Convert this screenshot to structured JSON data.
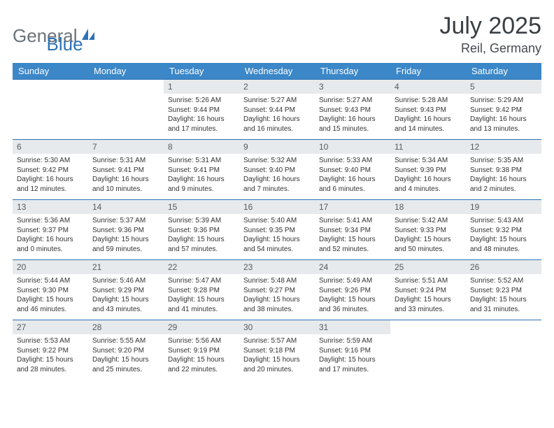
{
  "logo": {
    "part1": "General",
    "part2": "Blue"
  },
  "title": "July 2025",
  "location": "Reil, Germany",
  "colors": {
    "header_bg": "#3b87c8",
    "header_text": "#ffffff",
    "daynum_bg": "#e7eaec",
    "daynum_text": "#555a5e",
    "rule": "#2d72b5",
    "logo_gray": "#6b7278",
    "logo_blue": "#2d72b5",
    "page_bg": "#ffffff"
  },
  "typography": {
    "title_fontsize": 34,
    "location_fontsize": 18,
    "dayheader_fontsize": 13,
    "daynum_fontsize": 12,
    "body_fontsize": 10
  },
  "calendar": {
    "type": "table",
    "day_headers": [
      "Sunday",
      "Monday",
      "Tuesday",
      "Wednesday",
      "Thursday",
      "Friday",
      "Saturday"
    ],
    "columns": 7,
    "first_day_column": 2,
    "days": [
      {
        "n": 1,
        "sunrise": "5:26 AM",
        "sunset": "9:44 PM",
        "dl_h": 16,
        "dl_m": 17
      },
      {
        "n": 2,
        "sunrise": "5:27 AM",
        "sunset": "9:44 PM",
        "dl_h": 16,
        "dl_m": 16
      },
      {
        "n": 3,
        "sunrise": "5:27 AM",
        "sunset": "9:43 PM",
        "dl_h": 16,
        "dl_m": 15
      },
      {
        "n": 4,
        "sunrise": "5:28 AM",
        "sunset": "9:43 PM",
        "dl_h": 16,
        "dl_m": 14
      },
      {
        "n": 5,
        "sunrise": "5:29 AM",
        "sunset": "9:42 PM",
        "dl_h": 16,
        "dl_m": 13
      },
      {
        "n": 6,
        "sunrise": "5:30 AM",
        "sunset": "9:42 PM",
        "dl_h": 16,
        "dl_m": 12
      },
      {
        "n": 7,
        "sunrise": "5:31 AM",
        "sunset": "9:41 PM",
        "dl_h": 16,
        "dl_m": 10
      },
      {
        "n": 8,
        "sunrise": "5:31 AM",
        "sunset": "9:41 PM",
        "dl_h": 16,
        "dl_m": 9
      },
      {
        "n": 9,
        "sunrise": "5:32 AM",
        "sunset": "9:40 PM",
        "dl_h": 16,
        "dl_m": 7
      },
      {
        "n": 10,
        "sunrise": "5:33 AM",
        "sunset": "9:40 PM",
        "dl_h": 16,
        "dl_m": 6
      },
      {
        "n": 11,
        "sunrise": "5:34 AM",
        "sunset": "9:39 PM",
        "dl_h": 16,
        "dl_m": 4
      },
      {
        "n": 12,
        "sunrise": "5:35 AM",
        "sunset": "9:38 PM",
        "dl_h": 16,
        "dl_m": 2
      },
      {
        "n": 13,
        "sunrise": "5:36 AM",
        "sunset": "9:37 PM",
        "dl_h": 16,
        "dl_m": 0
      },
      {
        "n": 14,
        "sunrise": "5:37 AM",
        "sunset": "9:36 PM",
        "dl_h": 15,
        "dl_m": 59
      },
      {
        "n": 15,
        "sunrise": "5:39 AM",
        "sunset": "9:36 PM",
        "dl_h": 15,
        "dl_m": 57
      },
      {
        "n": 16,
        "sunrise": "5:40 AM",
        "sunset": "9:35 PM",
        "dl_h": 15,
        "dl_m": 54
      },
      {
        "n": 17,
        "sunrise": "5:41 AM",
        "sunset": "9:34 PM",
        "dl_h": 15,
        "dl_m": 52
      },
      {
        "n": 18,
        "sunrise": "5:42 AM",
        "sunset": "9:33 PM",
        "dl_h": 15,
        "dl_m": 50
      },
      {
        "n": 19,
        "sunrise": "5:43 AM",
        "sunset": "9:32 PM",
        "dl_h": 15,
        "dl_m": 48
      },
      {
        "n": 20,
        "sunrise": "5:44 AM",
        "sunset": "9:30 PM",
        "dl_h": 15,
        "dl_m": 46
      },
      {
        "n": 21,
        "sunrise": "5:46 AM",
        "sunset": "9:29 PM",
        "dl_h": 15,
        "dl_m": 43
      },
      {
        "n": 22,
        "sunrise": "5:47 AM",
        "sunset": "9:28 PM",
        "dl_h": 15,
        "dl_m": 41
      },
      {
        "n": 23,
        "sunrise": "5:48 AM",
        "sunset": "9:27 PM",
        "dl_h": 15,
        "dl_m": 38
      },
      {
        "n": 24,
        "sunrise": "5:49 AM",
        "sunset": "9:26 PM",
        "dl_h": 15,
        "dl_m": 36
      },
      {
        "n": 25,
        "sunrise": "5:51 AM",
        "sunset": "9:24 PM",
        "dl_h": 15,
        "dl_m": 33
      },
      {
        "n": 26,
        "sunrise": "5:52 AM",
        "sunset": "9:23 PM",
        "dl_h": 15,
        "dl_m": 31
      },
      {
        "n": 27,
        "sunrise": "5:53 AM",
        "sunset": "9:22 PM",
        "dl_h": 15,
        "dl_m": 28
      },
      {
        "n": 28,
        "sunrise": "5:55 AM",
        "sunset": "9:20 PM",
        "dl_h": 15,
        "dl_m": 25
      },
      {
        "n": 29,
        "sunrise": "5:56 AM",
        "sunset": "9:19 PM",
        "dl_h": 15,
        "dl_m": 22
      },
      {
        "n": 30,
        "sunrise": "5:57 AM",
        "sunset": "9:18 PM",
        "dl_h": 15,
        "dl_m": 20
      },
      {
        "n": 31,
        "sunrise": "5:59 AM",
        "sunset": "9:16 PM",
        "dl_h": 15,
        "dl_m": 17
      }
    ]
  },
  "labels": {
    "sunrise": "Sunrise:",
    "sunset": "Sunset:",
    "daylight": "Daylight:"
  }
}
